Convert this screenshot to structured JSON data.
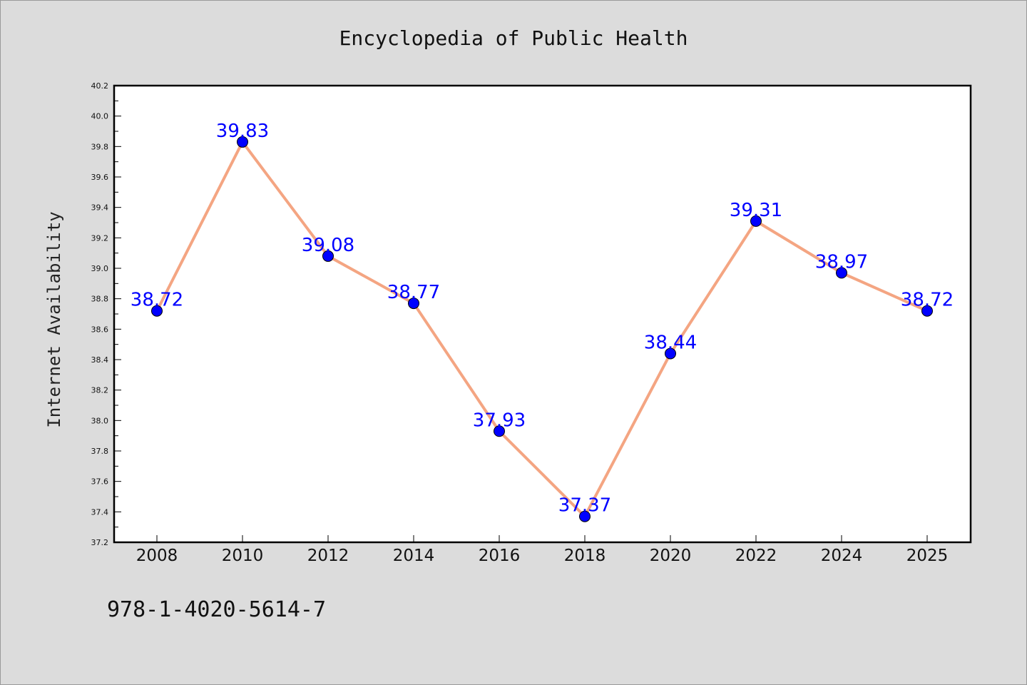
{
  "chart_data": {
    "type": "line",
    "title": "Encyclopedia of Public Health",
    "xlabel": "",
    "ylabel": "Internet Availability",
    "categories": [
      "2008",
      "2010",
      "2012",
      "2014",
      "2016",
      "2018",
      "2020",
      "2022",
      "2024",
      "2025"
    ],
    "series": [
      {
        "values": [
          38.72,
          39.83,
          39.08,
          38.77,
          37.93,
          37.37,
          38.44,
          39.31,
          38.97,
          38.72
        ],
        "data_labels": [
          "38.72",
          "39.83",
          "39.08",
          "38.77",
          "37.93",
          "37.37",
          "38.44",
          "39.31",
          "38.97",
          "38.72"
        ]
      }
    ],
    "ylim": [
      37.2,
      40.2
    ],
    "yticks": [
      "37.2",
      "37.4",
      "37.6",
      "37.8",
      "38.0",
      "38.2",
      "38.4",
      "38.6",
      "38.8",
      "39.0",
      "39.2",
      "39.4",
      "39.6",
      "39.8",
      "40.0",
      "40.2"
    ],
    "grid": false,
    "colors": {
      "line": "#f4a582",
      "marker": "#0000ff",
      "data_label": "#0000ff",
      "plot_background": "#ffffff",
      "figure_background": "#dcdcdc"
    }
  },
  "footer_text": "978-1-4020-5614-7"
}
